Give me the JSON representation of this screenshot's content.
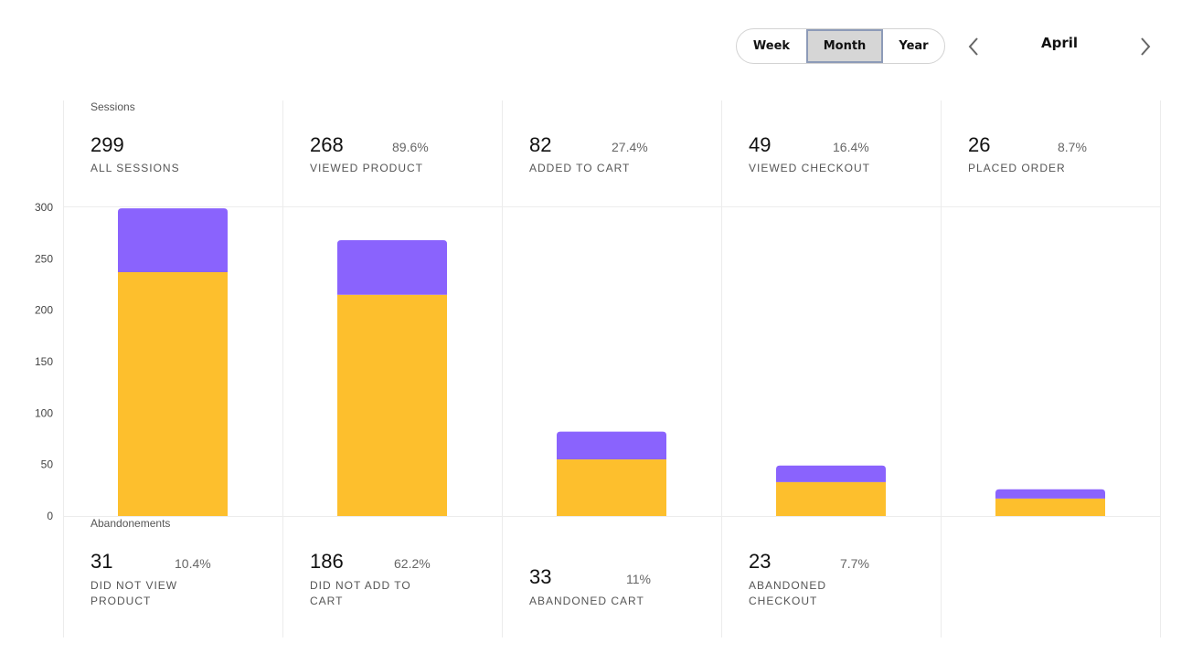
{
  "controls": {
    "periods": [
      "Week",
      "Month",
      "Year"
    ],
    "selected_period": "Month",
    "month": "April"
  },
  "sessions": {
    "label": "Sessions",
    "metrics": [
      {
        "value": "299",
        "pct": "",
        "label": "ALL SESSIONS"
      },
      {
        "value": "268",
        "pct": "89.6%",
        "label": "VIEWED PRODUCT"
      },
      {
        "value": "82",
        "pct": "27.4%",
        "label": "ADDED TO CART"
      },
      {
        "value": "49",
        "pct": "16.4%",
        "label": "VIEWED CHECKOUT"
      },
      {
        "value": "26",
        "pct": "8.7%",
        "label": "PLACED ORDER"
      }
    ]
  },
  "abandonments": {
    "label": "Abandonements",
    "metrics": [
      {
        "value": "31",
        "pct": "10.4%",
        "label": "DID NOT VIEW PRODUCT"
      },
      {
        "value": "186",
        "pct": "62.2%",
        "label": "DID NOT ADD TO CART"
      },
      {
        "value": "33",
        "pct": "11%",
        "label": "ABANDONED CART"
      },
      {
        "value": "23",
        "pct": "7.7%",
        "label": "ABANDONED CHECKOUT"
      }
    ]
  },
  "chart_data": {
    "type": "bar",
    "stacked": true,
    "categories": [
      "ALL SESSIONS",
      "VIEWED PRODUCT",
      "ADDED TO CART",
      "VIEWED CHECKOUT",
      "PLACED ORDER"
    ],
    "series": [
      {
        "values": [
          237,
          215,
          55,
          33,
          17
        ],
        "color": "#fdbf2d"
      },
      {
        "values": [
          62,
          53,
          27,
          16,
          9
        ],
        "color": "#8a63fd"
      }
    ],
    "totals": [
      299,
      268,
      82,
      49,
      26
    ],
    "yticks": [
      0,
      50,
      100,
      150,
      200,
      250,
      300
    ],
    "ylim": [
      0,
      300
    ],
    "grid": false
  }
}
